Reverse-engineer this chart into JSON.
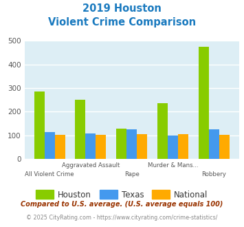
{
  "title_line1": "2019 Houston",
  "title_line2": "Violent Crime Comparison",
  "title_color": "#1a7abf",
  "categories": [
    "All Violent Crime",
    "Aggravated Assault",
    "Rape",
    "Murder & Mans...",
    "Robbery"
  ],
  "row1_labels": [
    "",
    "Aggravated Assault",
    "",
    "Murder & Mans...",
    ""
  ],
  "row2_labels": [
    "All Violent Crime",
    "",
    "Rape",
    "",
    "Robbery"
  ],
  "houston": [
    285,
    250,
    128,
    235,
    475
  ],
  "texas": [
    113,
    107,
    124,
    100,
    124
  ],
  "national": [
    103,
    103,
    104,
    104,
    103
  ],
  "houston_color": "#88cc00",
  "texas_color": "#4499ee",
  "national_color": "#ffaa00",
  "bg_color": "#ddeef5",
  "ylim": [
    0,
    500
  ],
  "yticks": [
    0,
    100,
    200,
    300,
    400,
    500
  ],
  "grid_color": "#ffffff",
  "bar_width": 0.25,
  "footnote1": "Compared to U.S. average. (U.S. average equals 100)",
  "footnote2": "© 2025 CityRating.com - https://www.cityrating.com/crime-statistics/",
  "footnote1_color": "#993300",
  "footnote2_color": "#888888",
  "footnote2_link_color": "#4499ee"
}
